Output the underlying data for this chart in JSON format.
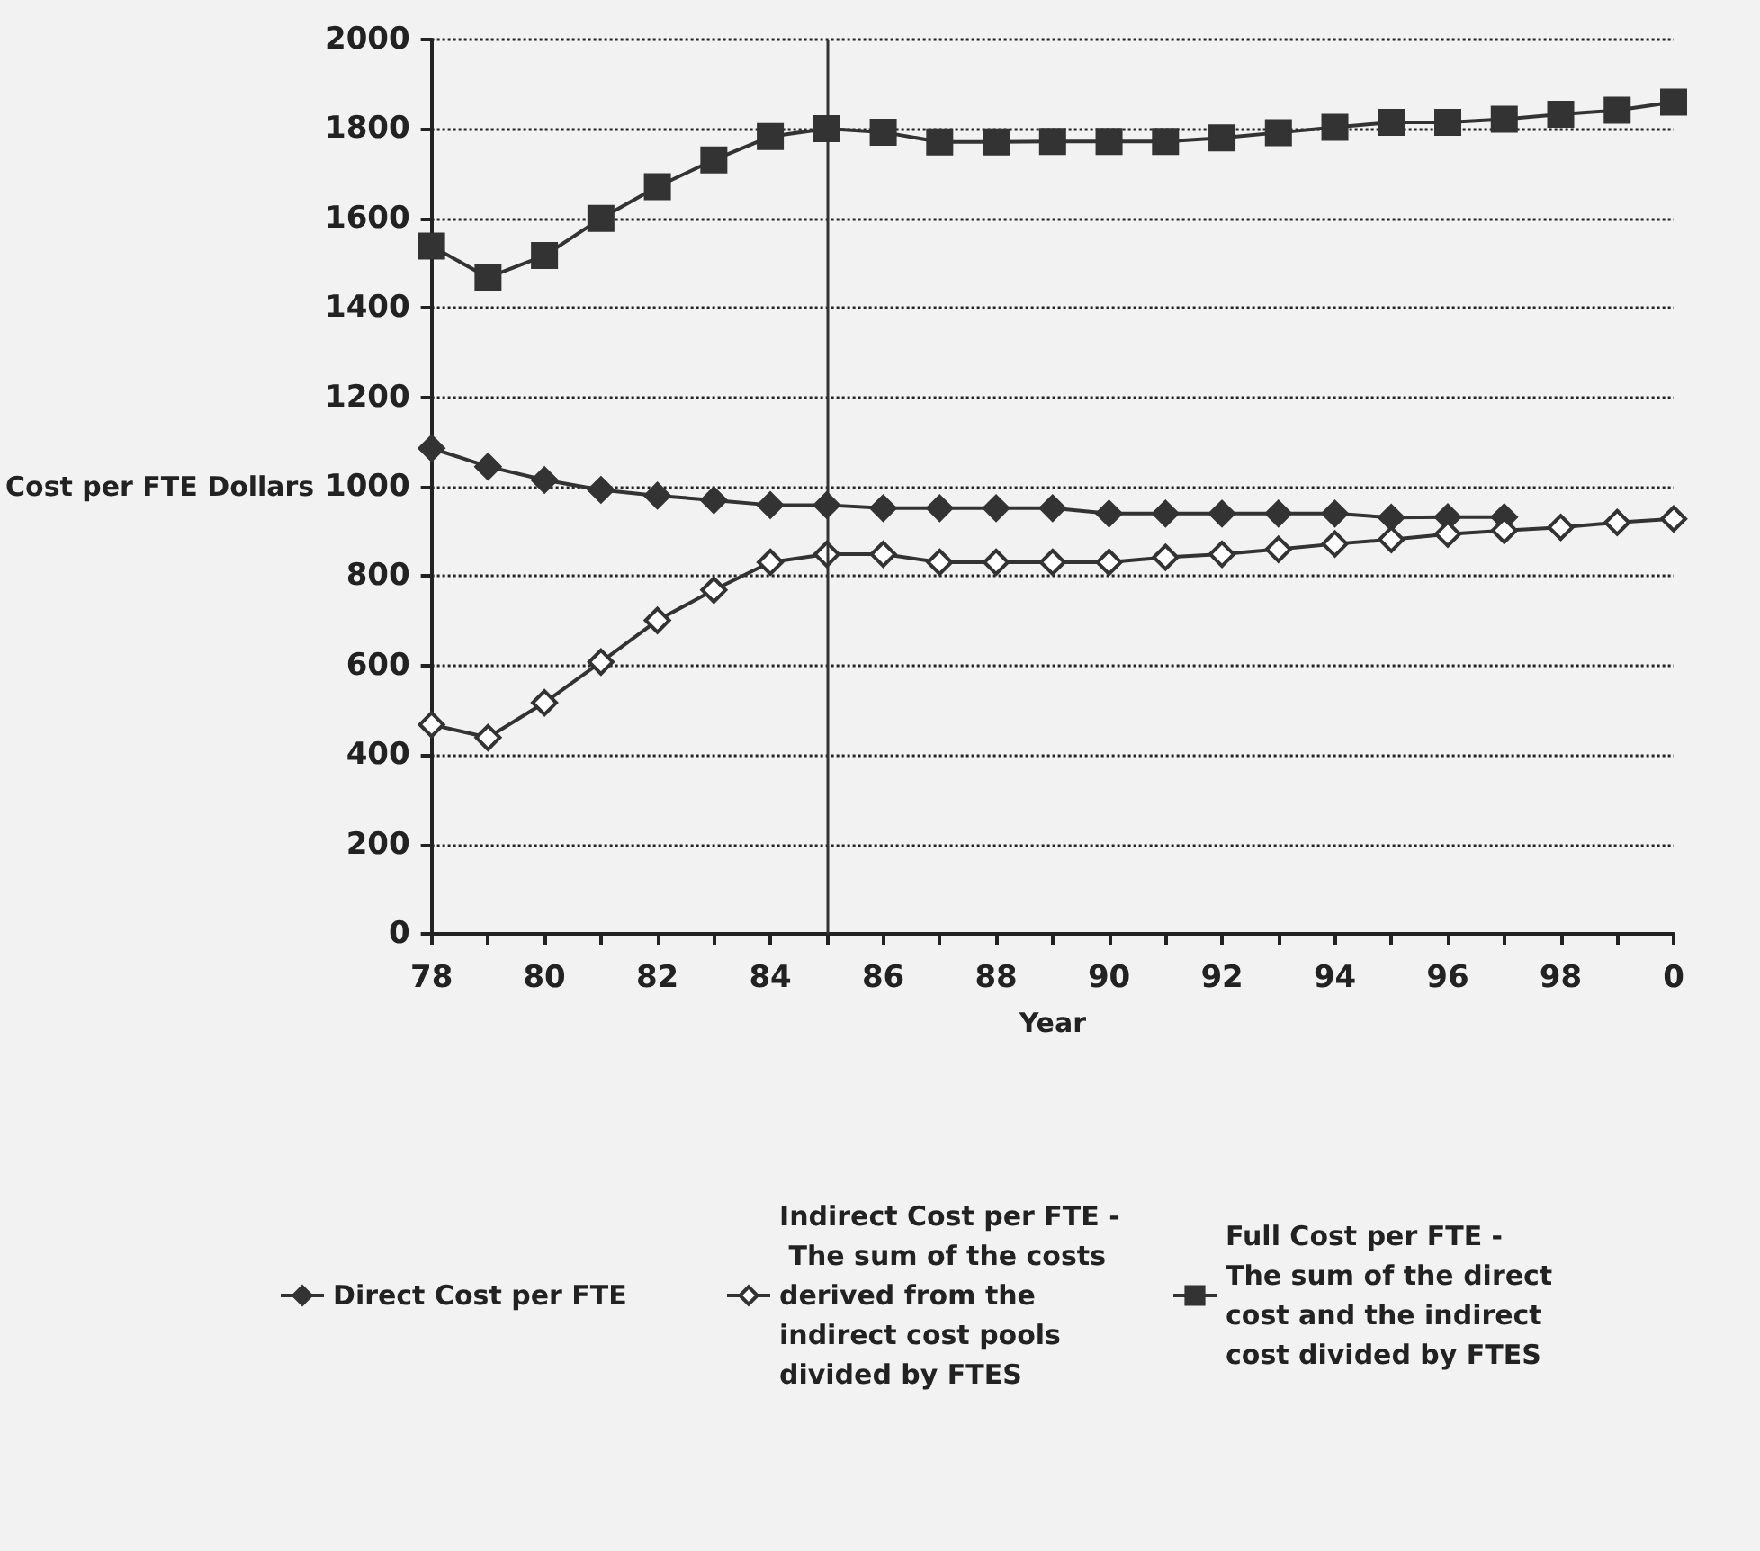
{
  "chart_data": {
    "type": "line",
    "xlabel": "Year",
    "ylabel": "Cost per FTE Dollars",
    "x": [
      "1978",
      "1979",
      "1980",
      "1981",
      "1982",
      "1983",
      "1984",
      "1985",
      "1986",
      "1987",
      "1988",
      "1989",
      "1990",
      "1991",
      "1992",
      "1993",
      "1994",
      "1995",
      "1996",
      "1997",
      "1998",
      "1999",
      "2000"
    ],
    "xlim": [
      "1978",
      "2000"
    ],
    "xticks": [
      {
        "value": "1978",
        "label": "78"
      },
      {
        "value": "1979",
        "label": null
      },
      {
        "value": "1980",
        "label": "80"
      },
      {
        "value": "1981",
        "label": null
      },
      {
        "value": "1982",
        "label": "82"
      },
      {
        "value": "1983",
        "label": null
      },
      {
        "value": "1984",
        "label": "84"
      },
      {
        "value": "1985",
        "label": null
      },
      {
        "value": "1986",
        "label": "86"
      },
      {
        "value": "1987",
        "label": null
      },
      {
        "value": "1988",
        "label": "88"
      },
      {
        "value": "1989",
        "label": null
      },
      {
        "value": "1990",
        "label": "90"
      },
      {
        "value": "1991",
        "label": null
      },
      {
        "value": "1992",
        "label": "92"
      },
      {
        "value": "1993",
        "label": null
      },
      {
        "value": "1994",
        "label": "94"
      },
      {
        "value": "1995",
        "label": null
      },
      {
        "value": "1996",
        "label": "96"
      },
      {
        "value": "1997",
        "label": null
      },
      {
        "value": "1998",
        "label": "98"
      },
      {
        "value": "1999",
        "label": null
      },
      {
        "value": "2000",
        "label": "0"
      }
    ],
    "ylim": [
      0,
      2000
    ],
    "yticks": [
      0,
      200,
      400,
      600,
      800,
      1000,
      1200,
      1400,
      1600,
      1800,
      2000
    ],
    "grid": "y",
    "legend": "bottom",
    "line_style": "solid",
    "ref_lines": [
      {
        "axis": "x",
        "value": "1985",
        "color": "#333333"
      }
    ],
    "series": [
      {
        "name": "Direct Cost per FTE",
        "color": "#333333",
        "marker": "diamond",
        "values": [
          1086,
          1045,
          1015,
          993,
          980,
          970,
          959,
          959,
          952,
          952,
          952,
          952,
          940,
          940,
          940,
          940,
          940,
          931,
          932,
          932,
          null,
          null,
          null
        ]
      },
      {
        "name": "Indirect Cost per FTE - The sum of the costs derived from the indirect cost pools divided by FTES",
        "color": "#333333",
        "marker": "diamond-open",
        "values": [
          468,
          439,
          517,
          608,
          701,
          769,
          831,
          849,
          849,
          831,
          831,
          831,
          831,
          842,
          849,
          860,
          872,
          882,
          894,
          902,
          909,
          920,
          928
        ]
      },
      {
        "name": "Full Cost per FTE - The sum of the direct cost and the indirect cost divided by FTES",
        "color": "#333333",
        "marker": "square",
        "values": [
          1538,
          1468,
          1517,
          1600,
          1671,
          1731,
          1783,
          1801,
          1793,
          1771,
          1771,
          1772,
          1772,
          1772,
          1780,
          1792,
          1804,
          1815,
          1815,
          1822,
          1833,
          1842,
          1860
        ]
      }
    ]
  }
}
